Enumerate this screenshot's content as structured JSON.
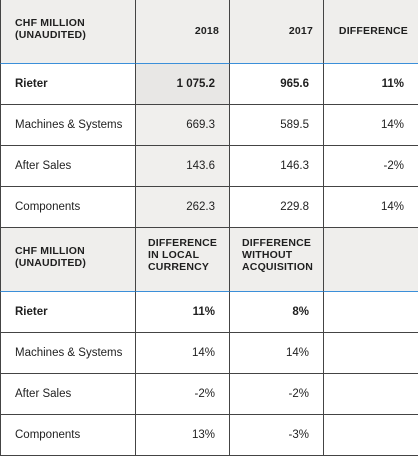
{
  "table1": {
    "header": [
      "CHF MILLION (UNAUDITED)",
      "2018",
      "2017",
      "DIFFERENCE"
    ],
    "rows": [
      {
        "label": "Rieter",
        "c1": "1 075.2",
        "c2": "965.6",
        "c3": "11%",
        "bold": true
      },
      {
        "label": "Machines & Systems",
        "c1": "669.3",
        "c2": "589.5",
        "c3": "14%"
      },
      {
        "label": "After Sales",
        "c1": "143.6",
        "c2": "146.3",
        "c3": "-2%"
      },
      {
        "label": "Components",
        "c1": "262.3",
        "c2": "229.8",
        "c3": "14%"
      }
    ]
  },
  "table2": {
    "header": [
      "CHF MILLION (UNAUDITED)",
      "DIFFERENCE IN LOCAL CURRENCY",
      "DIFFERENCE WITHOUT ACQUISITION",
      ""
    ],
    "rows": [
      {
        "label": "Rieter",
        "c1": "11%",
        "c2": "8%",
        "bold": true
      },
      {
        "label": "Machines & Systems",
        "c1": "14%",
        "c2": "14%"
      },
      {
        "label": "After Sales",
        "c1": "-2%",
        "c2": "-2%"
      },
      {
        "label": "Components",
        "c1": "13%",
        "c2": "-3%"
      }
    ]
  },
  "colors": {
    "accent_line": "#3b8fd9",
    "header_bg": "#efeeec",
    "shade_bg": "#f0efed"
  }
}
